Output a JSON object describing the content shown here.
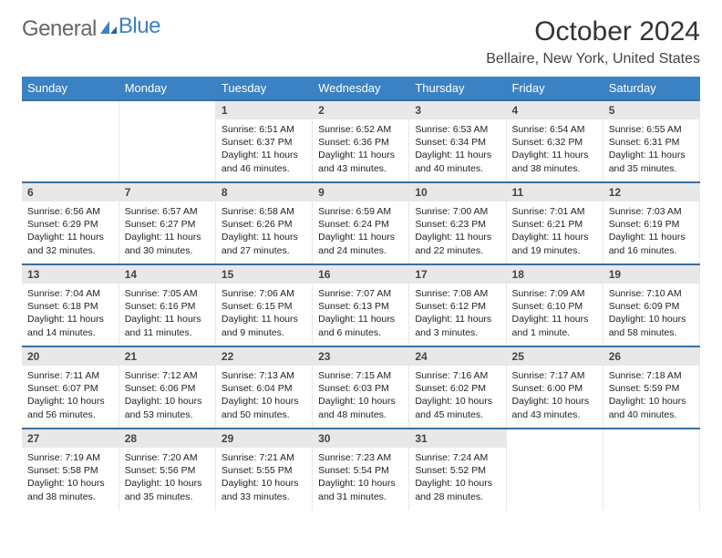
{
  "logo": {
    "part1": "General",
    "part2": "Blue"
  },
  "title": "October 2024",
  "location": "Bellaire, New York, United States",
  "colors": {
    "header_bg": "#3b82c4",
    "header_text": "#ffffff",
    "daynum_bg": "#e8e8e8",
    "row_border": "#3b6fa0",
    "logo_blue": "#3b82c4",
    "logo_gray": "#666666",
    "body_bg": "#ffffff"
  },
  "fonts": {
    "title_size_pt": 22,
    "location_size_pt": 12,
    "weekday_size_pt": 10,
    "cell_size_pt": 8
  },
  "weekdays": [
    "Sunday",
    "Monday",
    "Tuesday",
    "Wednesday",
    "Thursday",
    "Friday",
    "Saturday"
  ],
  "weeks": [
    [
      null,
      null,
      {
        "n": "1",
        "sr": "6:51 AM",
        "ss": "6:37 PM",
        "dl": "11 hours and 46 minutes."
      },
      {
        "n": "2",
        "sr": "6:52 AM",
        "ss": "6:36 PM",
        "dl": "11 hours and 43 minutes."
      },
      {
        "n": "3",
        "sr": "6:53 AM",
        "ss": "6:34 PM",
        "dl": "11 hours and 40 minutes."
      },
      {
        "n": "4",
        "sr": "6:54 AM",
        "ss": "6:32 PM",
        "dl": "11 hours and 38 minutes."
      },
      {
        "n": "5",
        "sr": "6:55 AM",
        "ss": "6:31 PM",
        "dl": "11 hours and 35 minutes."
      }
    ],
    [
      {
        "n": "6",
        "sr": "6:56 AM",
        "ss": "6:29 PM",
        "dl": "11 hours and 32 minutes."
      },
      {
        "n": "7",
        "sr": "6:57 AM",
        "ss": "6:27 PM",
        "dl": "11 hours and 30 minutes."
      },
      {
        "n": "8",
        "sr": "6:58 AM",
        "ss": "6:26 PM",
        "dl": "11 hours and 27 minutes."
      },
      {
        "n": "9",
        "sr": "6:59 AM",
        "ss": "6:24 PM",
        "dl": "11 hours and 24 minutes."
      },
      {
        "n": "10",
        "sr": "7:00 AM",
        "ss": "6:23 PM",
        "dl": "11 hours and 22 minutes."
      },
      {
        "n": "11",
        "sr": "7:01 AM",
        "ss": "6:21 PM",
        "dl": "11 hours and 19 minutes."
      },
      {
        "n": "12",
        "sr": "7:03 AM",
        "ss": "6:19 PM",
        "dl": "11 hours and 16 minutes."
      }
    ],
    [
      {
        "n": "13",
        "sr": "7:04 AM",
        "ss": "6:18 PM",
        "dl": "11 hours and 14 minutes."
      },
      {
        "n": "14",
        "sr": "7:05 AM",
        "ss": "6:16 PM",
        "dl": "11 hours and 11 minutes."
      },
      {
        "n": "15",
        "sr": "7:06 AM",
        "ss": "6:15 PM",
        "dl": "11 hours and 9 minutes."
      },
      {
        "n": "16",
        "sr": "7:07 AM",
        "ss": "6:13 PM",
        "dl": "11 hours and 6 minutes."
      },
      {
        "n": "17",
        "sr": "7:08 AM",
        "ss": "6:12 PM",
        "dl": "11 hours and 3 minutes."
      },
      {
        "n": "18",
        "sr": "7:09 AM",
        "ss": "6:10 PM",
        "dl": "11 hours and 1 minute."
      },
      {
        "n": "19",
        "sr": "7:10 AM",
        "ss": "6:09 PM",
        "dl": "10 hours and 58 minutes."
      }
    ],
    [
      {
        "n": "20",
        "sr": "7:11 AM",
        "ss": "6:07 PM",
        "dl": "10 hours and 56 minutes."
      },
      {
        "n": "21",
        "sr": "7:12 AM",
        "ss": "6:06 PM",
        "dl": "10 hours and 53 minutes."
      },
      {
        "n": "22",
        "sr": "7:13 AM",
        "ss": "6:04 PM",
        "dl": "10 hours and 50 minutes."
      },
      {
        "n": "23",
        "sr": "7:15 AM",
        "ss": "6:03 PM",
        "dl": "10 hours and 48 minutes."
      },
      {
        "n": "24",
        "sr": "7:16 AM",
        "ss": "6:02 PM",
        "dl": "10 hours and 45 minutes."
      },
      {
        "n": "25",
        "sr": "7:17 AM",
        "ss": "6:00 PM",
        "dl": "10 hours and 43 minutes."
      },
      {
        "n": "26",
        "sr": "7:18 AM",
        "ss": "5:59 PM",
        "dl": "10 hours and 40 minutes."
      }
    ],
    [
      {
        "n": "27",
        "sr": "7:19 AM",
        "ss": "5:58 PM",
        "dl": "10 hours and 38 minutes."
      },
      {
        "n": "28",
        "sr": "7:20 AM",
        "ss": "5:56 PM",
        "dl": "10 hours and 35 minutes."
      },
      {
        "n": "29",
        "sr": "7:21 AM",
        "ss": "5:55 PM",
        "dl": "10 hours and 33 minutes."
      },
      {
        "n": "30",
        "sr": "7:23 AM",
        "ss": "5:54 PM",
        "dl": "10 hours and 31 minutes."
      },
      {
        "n": "31",
        "sr": "7:24 AM",
        "ss": "5:52 PM",
        "dl": "10 hours and 28 minutes."
      },
      null,
      null
    ]
  ],
  "labels": {
    "sunrise": "Sunrise:",
    "sunset": "Sunset:",
    "daylight": "Daylight:"
  }
}
